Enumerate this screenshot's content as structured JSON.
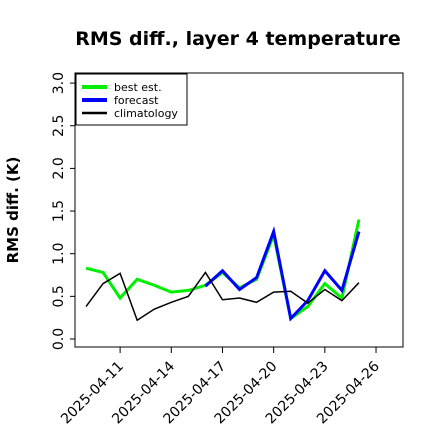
{
  "chart_data": {
    "type": "line",
    "title": "RMS diff., layer 4 temperature",
    "ylabel": "RMS diff. (K)",
    "xlabel": "",
    "ylim": [
      -0.05,
      3.2
    ],
    "yticks": [
      "0.0",
      "0.5",
      "1.0",
      "1.5",
      "2.0",
      "2.5",
      "3.0"
    ],
    "ytick_values": [
      0.0,
      0.5,
      1.0,
      1.5,
      2.0,
      2.5,
      3.0
    ],
    "xlim": [
      0,
      17
    ],
    "xtick_labels": [
      "2025-04-11",
      "2025-04-14",
      "2025-04-17",
      "2025-04-20",
      "2025-04-23",
      "2025-04-26"
    ],
    "xtick_positions": [
      3,
      6,
      9,
      12,
      15,
      18
    ],
    "highlight_tick": "2025-04-17",
    "grid": false,
    "legend_position": "top-left",
    "series": [
      {
        "name": "best est.",
        "color": "#00ee00",
        "values": [
          0.83,
          0.78,
          0.48,
          0.7,
          0.63,
          0.55,
          0.57,
          0.63,
          0.78,
          0.6,
          0.7,
          1.22,
          0.24,
          0.38,
          0.65,
          0.48,
          1.4
        ]
      },
      {
        "name": "forecast",
        "color": "#0000ff",
        "values": [
          null,
          null,
          null,
          null,
          null,
          null,
          null,
          0.62,
          0.8,
          0.58,
          0.72,
          1.26,
          0.24,
          0.45,
          0.8,
          0.57,
          1.26
        ]
      },
      {
        "name": "climatology",
        "color": "#000000",
        "values": [
          0.38,
          0.65,
          0.77,
          0.22,
          0.35,
          0.43,
          0.5,
          0.78,
          0.46,
          0.48,
          0.43,
          0.55,
          0.56,
          0.42,
          0.58,
          0.45,
          0.66
        ]
      }
    ],
    "x": [
      1,
      2,
      3,
      4,
      5,
      6,
      7,
      8,
      9,
      10,
      11,
      12,
      13,
      14,
      15,
      16,
      17
    ]
  }
}
